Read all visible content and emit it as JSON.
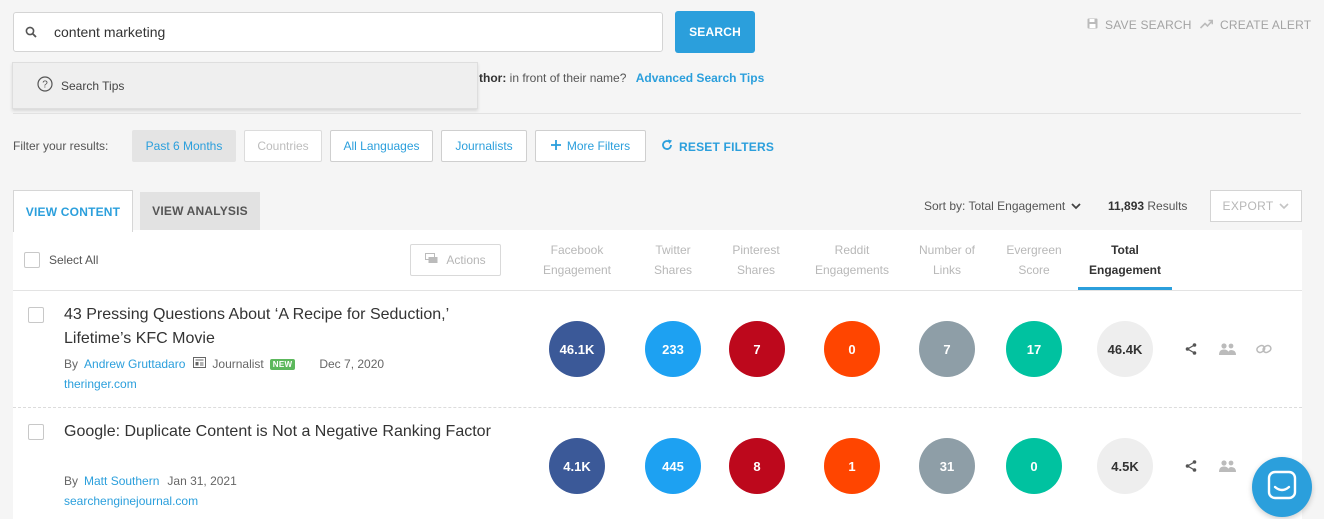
{
  "search": {
    "query": "content marketing",
    "button_label": "SEARCH",
    "save_label": "SAVE SEARCH",
    "alert_label": "CREATE ALERT",
    "tips_label": "Search Tips",
    "hint_prefix": "thor:",
    "hint_text": "in front of their name?",
    "advanced_link": "Advanced Search Tips"
  },
  "filters": {
    "label": "Filter your results:",
    "chips": [
      "Past 6 Months",
      "Countries",
      "All Languages",
      "Journalists",
      "More Filters"
    ],
    "reset_label": "RESET FILTERS"
  },
  "tabs": {
    "content": "VIEW CONTENT",
    "analysis": "VIEW ANALYSIS"
  },
  "sort": {
    "label": "Sort by: Total Engagement",
    "results_count": "11,893",
    "results_label": "Results",
    "export_label": "EXPORT"
  },
  "table": {
    "select_all": "Select All",
    "actions_label": "Actions",
    "columns": [
      {
        "line1": "Facebook",
        "line2": "Engagement"
      },
      {
        "line1": "Twitter",
        "line2": "Shares"
      },
      {
        "line1": "Pinterest",
        "line2": "Shares"
      },
      {
        "line1": "Reddit",
        "line2": "Engagements"
      },
      {
        "line1": "Number of",
        "line2": "Links"
      },
      {
        "line1": "Evergreen",
        "line2": "Score"
      },
      {
        "line1": "Total",
        "line2": "Engagement"
      }
    ],
    "rows": [
      {
        "title": "43 Pressing Questions About ‘A Recipe for Seduction,’ Lifetime’s KFC Movie",
        "by": "By",
        "author": "Andrew Gruttadaro",
        "role": "Journalist",
        "badge": "NEW",
        "date": "Dec 7, 2020",
        "domain": "theringer.com",
        "metrics": [
          "46.1K",
          "233",
          "7",
          "0",
          "7",
          "17",
          "46.4K"
        ]
      },
      {
        "title": "Google: Duplicate Content is Not a Negative Ranking Factor",
        "by": "By",
        "author": "Matt Southern",
        "date": "Jan 31, 2021",
        "domain": "searchenginejournal.com",
        "metrics": [
          "4.1K",
          "445",
          "8",
          "1",
          "31",
          "0",
          "4.5K"
        ]
      }
    ]
  },
  "colors": {
    "accent": "#2b9fdc",
    "facebook": "#3b5998",
    "twitter": "#1da1f2",
    "pinterest": "#bd081c",
    "reddit": "#ff4500",
    "links": "#8e9ea7",
    "evergreen": "#00c2a0"
  }
}
